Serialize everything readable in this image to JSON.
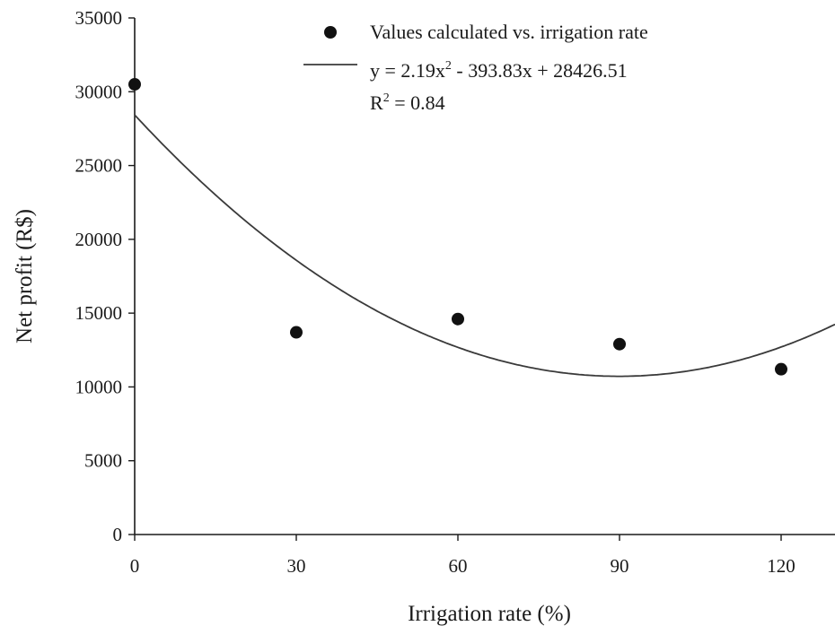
{
  "chart_data": {
    "type": "scatter",
    "xlabel": "Irrigation rate (%)",
    "ylabel": "Net profit (R$)",
    "xlim": [
      0,
      130
    ],
    "ylim": [
      0,
      35000
    ],
    "x_ticks": [
      0,
      30,
      60,
      90,
      120
    ],
    "y_ticks": [
      0,
      5000,
      10000,
      15000,
      20000,
      25000,
      30000,
      35000
    ],
    "grid": false,
    "legend_position": "top-right",
    "series": [
      {
        "name": "Values calculated vs. irrigation rate",
        "kind": "scatter",
        "marker": "filled-circle",
        "x": [
          0,
          30,
          60,
          90,
          120
        ],
        "y": [
          30500,
          13700,
          14600,
          12900,
          11200
        ]
      },
      {
        "kind": "line",
        "fit": "quadratic",
        "coefficients": {
          "a": 2.19,
          "b": -393.83,
          "c": 28426.51
        }
      }
    ],
    "annotations": {
      "equation_prefix": "y = 2.19x",
      "equation_exponent": "2",
      "equation_suffix": " - 393.83x + 28426.51",
      "r2_prefix": "R",
      "r2_exponent": "2",
      "r2_suffix": " = 0.84"
    }
  }
}
